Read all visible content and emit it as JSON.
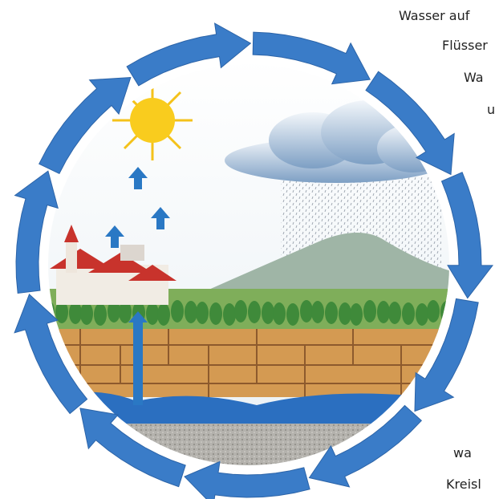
{
  "text_lines": [
    "Wasser auf",
    "Flüsser",
    "Wa",
    "u",
    "wa",
    "Kreisl"
  ]
}
